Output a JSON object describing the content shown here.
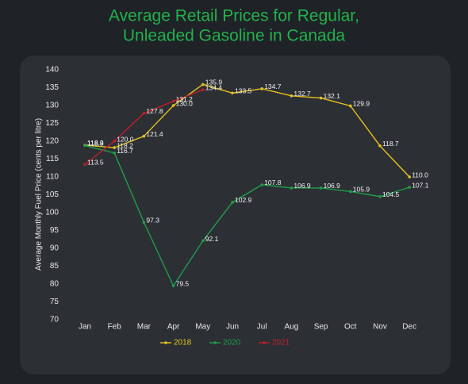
{
  "chart_data": {
    "type": "line",
    "title": [
      "Average Retail Prices for Regular,",
      "Unleaded Gasoline in Canada"
    ],
    "y_label": "Average Monthly Fuel Price (cents per litre)",
    "categories": [
      "Jan",
      "Feb",
      "Mar",
      "Apr",
      "May",
      "Jun",
      "Jul",
      "Aug",
      "Sep",
      "Oct",
      "Nov",
      "Dec"
    ],
    "series": [
      {
        "name": "2018",
        "color": "#e6c21e",
        "values": [
          118.9,
          118.2,
          121.4,
          130.0,
          135.9,
          133.5,
          134.7,
          132.7,
          132.1,
          129.9,
          118.7,
          110.0
        ],
        "value_labels": [
          "118.9",
          "118.2",
          "121.4",
          "130.0",
          "135.9",
          "133.5",
          "134.7",
          "132.7",
          "132.1",
          "129.9",
          "118.7",
          "110.0"
        ]
      },
      {
        "name": "2020",
        "color": "#1f9e4a",
        "values": [
          118.8,
          116.7,
          97.3,
          79.5,
          92.1,
          102.9,
          107.8,
          106.9,
          106.9,
          105.9,
          104.5,
          107.1
        ],
        "value_labels": [
          "118.8",
          "116.7",
          "97.3",
          "79.5",
          "92.1",
          "102.9",
          "107.8",
          "106.9",
          "106.9",
          "105.9",
          "104.5",
          "107.1"
        ]
      },
      {
        "name": "2021",
        "color": "#c0202a",
        "values": [
          113.5,
          120.0,
          127.8,
          131.2,
          134.4,
          null,
          null,
          null,
          null,
          null,
          null,
          null
        ],
        "value_labels": [
          "113.5",
          "120.0",
          "127.8",
          "131.2",
          "134.4",
          null,
          null,
          null,
          null,
          null,
          null,
          null
        ]
      }
    ],
    "ylim": [
      70,
      140
    ],
    "yticks": [
      70,
      75,
      80,
      85,
      90,
      95,
      100,
      105,
      110,
      115,
      120,
      125,
      130,
      135,
      140
    ],
    "grid": false,
    "legend": "bottom"
  }
}
